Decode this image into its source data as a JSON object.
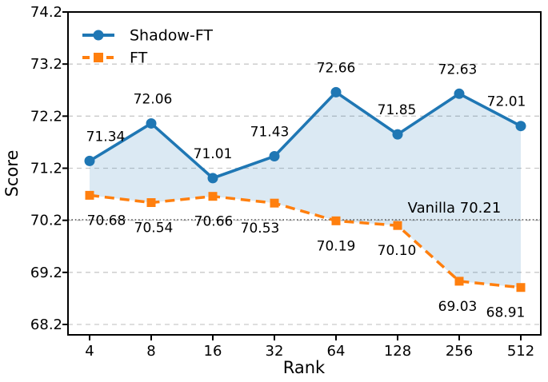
{
  "chart_data": {
    "type": "line",
    "title": "",
    "xlabel": "Rank",
    "ylabel": "Score",
    "x_scale": "log2 (categories equally spaced)",
    "x_tick_labels": [
      "4",
      "8",
      "16",
      "32",
      "64",
      "128",
      "256",
      "512"
    ],
    "y_tick_labels": [
      "74.2",
      "73.2",
      "72.2",
      "71.2",
      "70.2",
      "69.2",
      "68.2"
    ],
    "ylim": [
      68.0,
      74.2
    ],
    "grid": "horizontal dashed gridlines",
    "legend_position": "upper-left, no frame",
    "series": [
      {
        "name": "Shadow-FT",
        "color": "#1f77b4",
        "line_style": "solid",
        "marker": "circle",
        "values": [
          71.34,
          72.06,
          71.01,
          71.43,
          72.66,
          71.85,
          72.63,
          72.01
        ]
      },
      {
        "name": "FT",
        "color": "#ff7f0e",
        "line_style": "dashed",
        "marker": "square",
        "values": [
          70.68,
          70.54,
          70.66,
          70.53,
          70.19,
          70.1,
          69.03,
          68.91
        ]
      }
    ],
    "baseline": {
      "label": "Vanilla 70.21",
      "value": 70.21,
      "style": "dotted",
      "color": "#666666"
    },
    "fill_between_series": {
      "between": [
        "Shadow-FT",
        "FT"
      ],
      "color": "#1f77b4",
      "opacity": 0.16
    },
    "grid_color": "#c9c9c9",
    "spine_color": "#000000"
  }
}
